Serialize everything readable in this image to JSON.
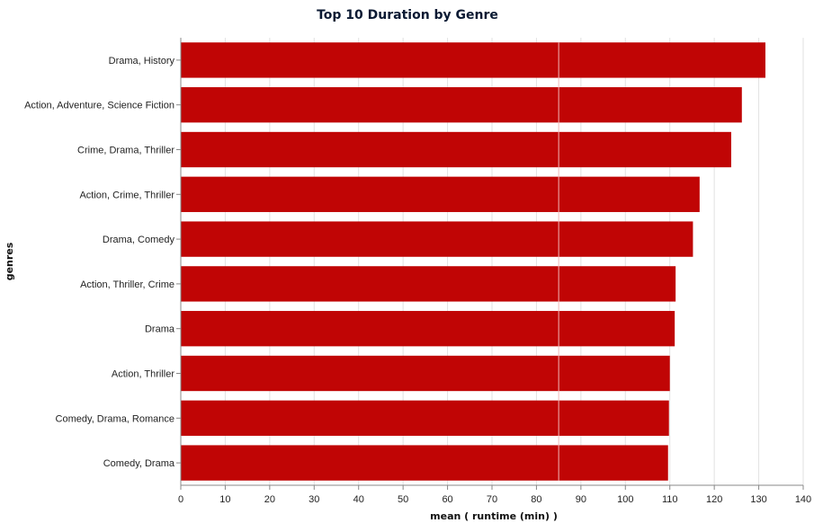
{
  "chart_data": {
    "type": "bar",
    "orientation": "horizontal",
    "title": "Top 10 Duration by Genre",
    "xlabel": "mean ( runtime (min) )",
    "ylabel": "genres",
    "categories": [
      "Drama, History",
      "Action, Adventure, Science Fiction",
      "Crime, Drama, Thriller",
      "Action, Crime, Thriller",
      "Drama, Comedy",
      "Action, Thriller, Crime",
      "Drama",
      "Action, Thriller",
      "Comedy, Drama, Romance",
      "Comedy, Drama"
    ],
    "values": [
      131.5,
      126.2,
      123.8,
      116.7,
      115.2,
      111.3,
      111.1,
      110.0,
      109.8,
      109.6
    ],
    "xlim": [
      0,
      140
    ],
    "xticks": [
      0,
      10,
      20,
      30,
      40,
      50,
      60,
      70,
      80,
      90,
      100,
      110,
      120,
      130,
      140
    ],
    "reference_line_x": 85,
    "bar_color": "#c00505",
    "grid": true
  }
}
